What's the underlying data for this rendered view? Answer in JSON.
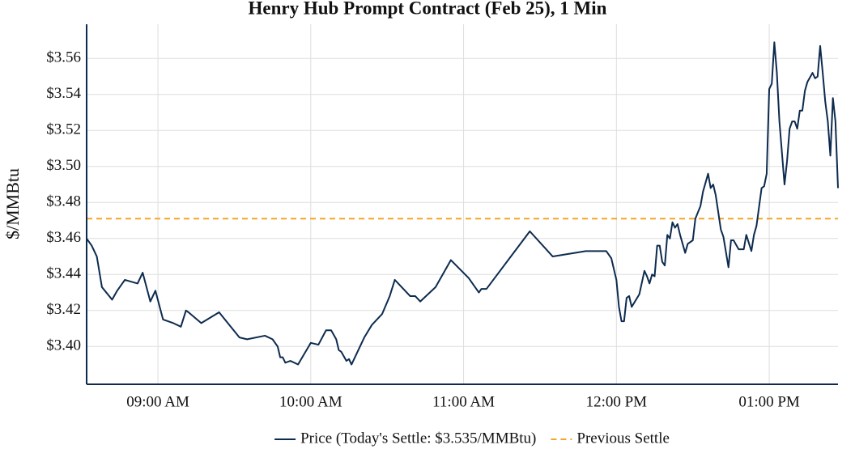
{
  "chart_data": {
    "type": "line",
    "title": "Henry Hub Prompt Contract (Feb 25), 1 Min",
    "ylabel": "$/MMBtu",
    "x": [
      "08:32",
      "08:34",
      "08:36",
      "08:38",
      "08:42",
      "08:44",
      "08:47",
      "08:52",
      "08:54",
      "08:57",
      "08:59",
      "09:02",
      "09:06",
      "09:09",
      "09:11",
      "09:12",
      "09:17",
      "09:24",
      "09:32",
      "09:35",
      "09:42",
      "09:45",
      "09:47",
      "09:48",
      "09:49",
      "09:50",
      "09:52",
      "09:55",
      "10:00",
      "10:03",
      "10:06",
      "10:08",
      "10:10",
      "10:11",
      "10:12",
      "10:14",
      "10:15",
      "10:16",
      "10:21",
      "10:24",
      "10:28",
      "10:31",
      "10:33",
      "10:39",
      "10:41",
      "10:43",
      "10:49",
      "10:55",
      "11:02",
      "11:06",
      "11:07",
      "11:09",
      "11:26",
      "11:35",
      "11:48",
      "11:56",
      "11:58",
      "12:00",
      "12:01",
      "12:02",
      "12:03",
      "12:04",
      "12:05",
      "12:06",
      "12:09",
      "12:11",
      "12:12",
      "12:13",
      "12:14",
      "12:15",
      "12:16",
      "12:17",
      "12:18",
      "12:19",
      "12:20",
      "12:21",
      "12:22",
      "12:23",
      "12:24",
      "12:25",
      "12:27",
      "12:28",
      "12:30",
      "12:31",
      "12:33",
      "12:34",
      "12:36",
      "12:37",
      "12:38",
      "12:39",
      "12:41",
      "12:42",
      "12:44",
      "12:45",
      "12:46",
      "12:48",
      "12:50",
      "12:51",
      "12:53",
      "12:54",
      "12:55",
      "12:57",
      "12:58",
      "12:59",
      "13:00",
      "13:01",
      "13:02",
      "13:03",
      "13:04",
      "13:06",
      "13:07",
      "13:08",
      "13:09",
      "13:10",
      "13:11",
      "13:12",
      "13:13",
      "13:14",
      "13:15",
      "13:17",
      "13:18",
      "13:19",
      "13:20",
      "13:21",
      "13:22",
      "13:23",
      "13:24",
      "13:25",
      "13:26",
      "13:27"
    ],
    "series": [
      {
        "name": "Price (Today's Settle: $3.535/MMBtu)",
        "color": "#0d2b4e",
        "values": [
          3.46,
          3.456,
          3.45,
          3.433,
          3.426,
          3.431,
          3.437,
          3.435,
          3.441,
          3.425,
          3.431,
          3.415,
          3.413,
          3.411,
          3.42,
          3.419,
          3.413,
          3.419,
          3.405,
          3.404,
          3.406,
          3.404,
          3.4,
          3.394,
          3.394,
          3.391,
          3.392,
          3.39,
          3.402,
          3.401,
          3.409,
          3.409,
          3.404,
          3.398,
          3.397,
          3.392,
          3.393,
          3.39,
          3.405,
          3.412,
          3.418,
          3.428,
          3.437,
          3.428,
          3.428,
          3.425,
          3.433,
          3.448,
          3.438,
          3.43,
          3.432,
          3.432,
          3.464,
          3.45,
          3.453,
          3.453,
          3.449,
          3.437,
          3.422,
          3.414,
          3.414,
          3.427,
          3.428,
          3.422,
          3.429,
          3.442,
          3.439,
          3.435,
          3.44,
          3.439,
          3.456,
          3.456,
          3.447,
          3.445,
          3.462,
          3.46,
          3.469,
          3.466,
          3.468,
          3.462,
          3.452,
          3.457,
          3.459,
          3.471,
          3.478,
          3.486,
          3.496,
          3.488,
          3.49,
          3.484,
          3.465,
          3.461,
          3.444,
          3.459,
          3.459,
          3.454,
          3.454,
          3.462,
          3.453,
          3.462,
          3.467,
          3.488,
          3.489,
          3.496,
          3.543,
          3.546,
          3.569,
          3.552,
          3.525,
          3.49,
          3.503,
          3.521,
          3.525,
          3.525,
          3.521,
          3.531,
          3.531,
          3.542,
          3.547,
          3.552,
          3.549,
          3.55,
          3.567,
          3.552,
          3.536,
          3.525,
          3.506,
          3.538,
          3.525,
          3.488
        ]
      }
    ],
    "reference_lines": [
      {
        "name": "Previous Settle",
        "value": 3.471,
        "color": "#f5a623",
        "dashed": true
      }
    ],
    "xlim": [
      "08:32",
      "13:27"
    ],
    "xticks": [
      {
        "value": "09:00",
        "label": "09:00 AM"
      },
      {
        "value": "10:00",
        "label": "10:00 AM"
      },
      {
        "value": "11:00",
        "label": "11:00 AM"
      },
      {
        "value": "12:00",
        "label": "12:00 PM"
      },
      {
        "value": "13:00",
        "label": "01:00 PM"
      }
    ],
    "ylim": [
      3.379,
      3.579
    ],
    "yticks": [
      {
        "value": 3.4,
        "label": "$3.40"
      },
      {
        "value": 3.42,
        "label": "$3.42"
      },
      {
        "value": 3.44,
        "label": "$3.44"
      },
      {
        "value": 3.46,
        "label": "$3.46"
      },
      {
        "value": 3.48,
        "label": "$3.48"
      },
      {
        "value": 3.5,
        "label": "$3.50"
      },
      {
        "value": 3.52,
        "label": "$3.52"
      },
      {
        "value": 3.54,
        "label": "$3.54"
      },
      {
        "value": 3.56,
        "label": "$3.56"
      }
    ],
    "grid": true,
    "legend": "bottom"
  }
}
